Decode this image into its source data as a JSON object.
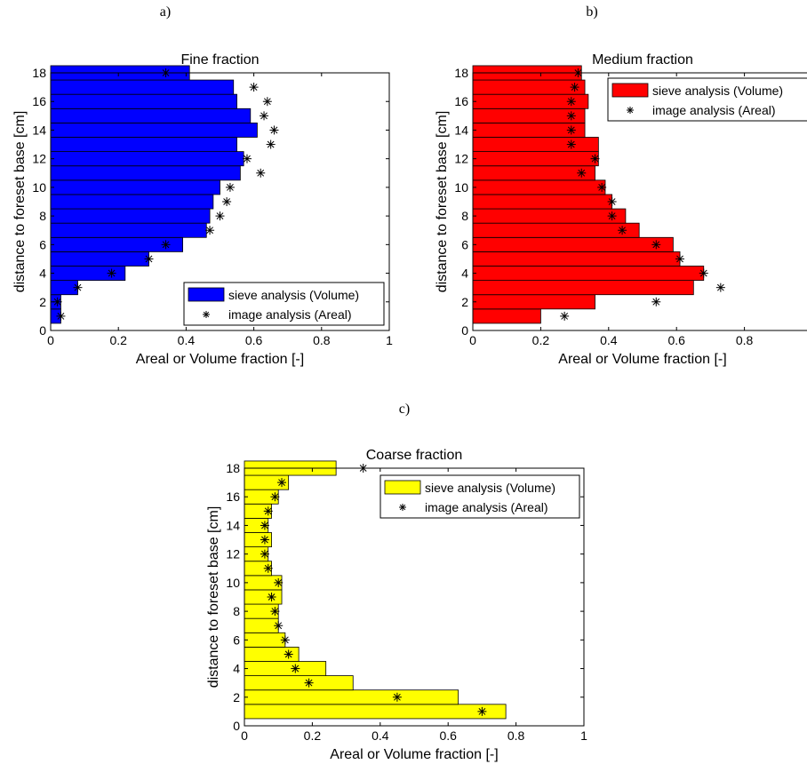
{
  "chart_data": [
    {
      "panel_label": "a)",
      "type": "bar",
      "orientation": "horizontal",
      "title": "Fine fraction",
      "xlabel": "Areal or Volume fraction [-]",
      "ylabel": "distance to foreset base [cm]",
      "xlim": [
        0,
        1
      ],
      "ylim": [
        0,
        18
      ],
      "xticks": [
        "0",
        "0.2",
        "0.4",
        "0.6",
        "0.8",
        "1"
      ],
      "yticks": [
        "0",
        "2",
        "4",
        "6",
        "8",
        "10",
        "12",
        "14",
        "16",
        "18"
      ],
      "bar_color": "#0000ff",
      "legend_position": "bottom-right",
      "categories": [
        1,
        2,
        3,
        4,
        5,
        6,
        7,
        8,
        9,
        10,
        11,
        12,
        13,
        14,
        15,
        16,
        17,
        18
      ],
      "series": [
        {
          "name": "sieve analysis (Volume)",
          "kind": "bar",
          "values": [
            0.03,
            0.03,
            0.08,
            0.22,
            0.29,
            0.39,
            0.46,
            0.47,
            0.48,
            0.5,
            0.56,
            0.57,
            0.55,
            0.61,
            0.59,
            0.55,
            0.54,
            0.41
          ]
        },
        {
          "name": "image analysis (Areal)",
          "kind": "marker",
          "values": [
            0.03,
            0.02,
            0.08,
            0.18,
            0.29,
            0.34,
            0.47,
            0.5,
            0.52,
            0.53,
            0.62,
            0.58,
            0.65,
            0.66,
            0.63,
            0.64,
            0.6,
            0.34
          ]
        }
      ]
    },
    {
      "panel_label": "b)",
      "type": "bar",
      "orientation": "horizontal",
      "title": "Medium fraction",
      "xlabel": "Areal or Volume fraction [-]",
      "ylabel": "distance to foreset base [cm]",
      "xlim": [
        0,
        1
      ],
      "ylim": [
        0,
        18
      ],
      "xticks": [
        "0",
        "0.2",
        "0.4",
        "0.6",
        "0.8"
      ],
      "yticks": [
        "0",
        "2",
        "4",
        "6",
        "8",
        "10",
        "12",
        "14",
        "16",
        "18"
      ],
      "bar_color": "#ff0000",
      "legend_position": "top-right",
      "categories": [
        1,
        2,
        3,
        4,
        5,
        6,
        7,
        8,
        9,
        10,
        11,
        12,
        13,
        14,
        15,
        16,
        17,
        18
      ],
      "series": [
        {
          "name": "sieve analysis (Volume)",
          "kind": "bar",
          "values": [
            0.2,
            0.36,
            0.65,
            0.68,
            0.61,
            0.59,
            0.49,
            0.45,
            0.41,
            0.39,
            0.36,
            0.37,
            0.37,
            0.33,
            0.33,
            0.34,
            0.33,
            0.32
          ]
        },
        {
          "name": "image analysis (Areal)",
          "kind": "marker",
          "values": [
            0.27,
            0.54,
            0.73,
            0.68,
            0.61,
            0.54,
            0.44,
            0.41,
            0.41,
            0.38,
            0.32,
            0.36,
            0.29,
            0.29,
            0.29,
            0.29,
            0.3,
            0.31
          ]
        }
      ]
    },
    {
      "panel_label": "c)",
      "type": "bar",
      "orientation": "horizontal",
      "title": "Coarse fraction",
      "xlabel": "Areal or Volume fraction [-]",
      "ylabel": "distance to foreset base [cm]",
      "xlim": [
        0,
        1
      ],
      "ylim": [
        0,
        18
      ],
      "xticks": [
        "0",
        "0.2",
        "0.4",
        "0.6",
        "0.8",
        "1"
      ],
      "yticks": [
        "0",
        "2",
        "4",
        "6",
        "8",
        "10",
        "12",
        "14",
        "16",
        "18"
      ],
      "bar_color": "#ffff00",
      "legend_position": "top-right",
      "categories": [
        1,
        2,
        3,
        4,
        5,
        6,
        7,
        8,
        9,
        10,
        11,
        12,
        13,
        14,
        15,
        16,
        17,
        18
      ],
      "series": [
        {
          "name": "sieve analysis (Volume)",
          "kind": "bar",
          "values": [
            0.77,
            0.63,
            0.32,
            0.24,
            0.16,
            0.12,
            0.1,
            0.1,
            0.11,
            0.11,
            0.08,
            0.07,
            0.08,
            0.07,
            0.08,
            0.1,
            0.13,
            0.27
          ]
        },
        {
          "name": "image analysis (Areal)",
          "kind": "marker",
          "values": [
            0.7,
            0.45,
            0.19,
            0.15,
            0.13,
            0.12,
            0.1,
            0.09,
            0.08,
            0.1,
            0.07,
            0.06,
            0.06,
            0.06,
            0.07,
            0.09,
            0.11,
            0.35
          ]
        }
      ]
    }
  ]
}
